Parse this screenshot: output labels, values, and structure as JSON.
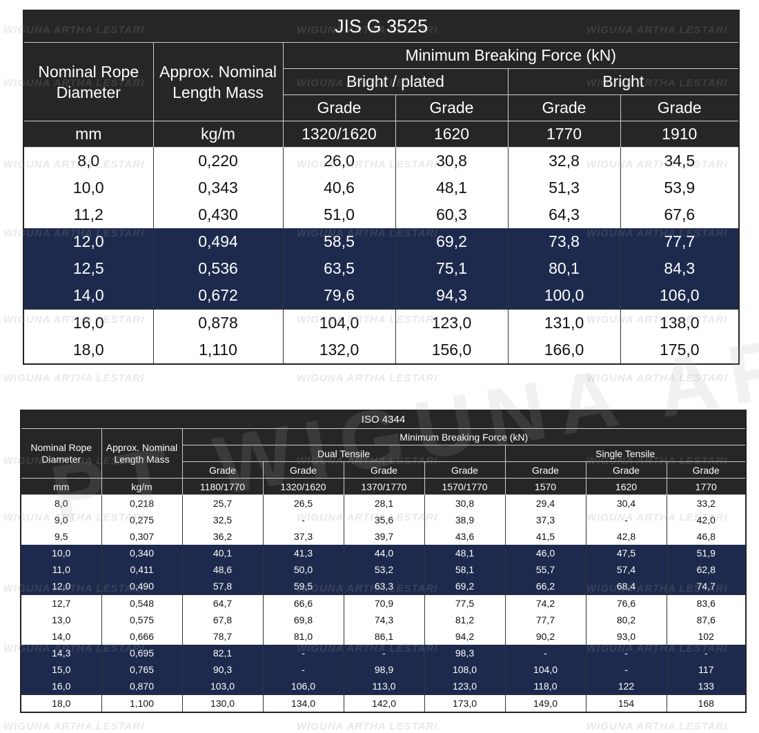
{
  "watermark": {
    "small": "WIGUNA ARTHA LESTARI",
    "big": "PT WIGUNA ARTHA LESTARI"
  },
  "jis": {
    "title": "JIS G 3525",
    "col_diameter": "Nominal Rope Diameter",
    "col_mass": "Approx. Nominal Length Mass",
    "col_mbf": "Minimum Breaking Force (kN)",
    "group1": "Bright / plated",
    "group2": "Bright",
    "grade_label": "Grade",
    "unit_diameter": "mm",
    "unit_mass": "kg/m",
    "grades": [
      "1320/1620",
      "1620",
      "1770",
      "1910"
    ],
    "rows": [
      [
        "8,0",
        "0,220",
        "26,0",
        "30,8",
        "32,8",
        "34,5"
      ],
      [
        "10,0",
        "0,343",
        "40,6",
        "48,1",
        "51,3",
        "53,9"
      ],
      [
        "11,2",
        "0,430",
        "51,0",
        "60,3",
        "64,3",
        "67,6"
      ],
      [
        "12,0",
        "0,494",
        "58,5",
        "69,2",
        "73,8",
        "77,7"
      ],
      [
        "12,5",
        "0,536",
        "63,5",
        "75,1",
        "80,1",
        "84,3"
      ],
      [
        "14,0",
        "0,672",
        "79,6",
        "94,3",
        "100,0",
        "106,0"
      ],
      [
        "16,0",
        "0,878",
        "104,0",
        "123,0",
        "131,0",
        "138,0"
      ],
      [
        "18,0",
        "1,110",
        "132,0",
        "156,0",
        "166,0",
        "175,0"
      ]
    ]
  },
  "iso": {
    "title": "ISO 4344",
    "col_diameter": "Nominal Rope Diameter",
    "col_mass": "Approx. Nominal Length Mass",
    "col_mbf": "Minimum Breaking Force (kN)",
    "group1": "Dual Tensile",
    "group2": "Single Tensile",
    "grade_label": "Grade",
    "unit_diameter": "mm",
    "unit_mass": "kg/m",
    "grades": [
      "1180/1770",
      "1320/1620",
      "1370/1770",
      "1570/1770",
      "1570",
      "1620",
      "1770"
    ],
    "rows": [
      [
        "8,0",
        "0,218",
        "25,7",
        "26,5",
        "28,1",
        "30,8",
        "29,4",
        "30,4",
        "33,2"
      ],
      [
        "9,0",
        "0,275",
        "32,5",
        "-",
        "35,6",
        "38,9",
        "37,3",
        "-",
        "42,0"
      ],
      [
        "9,5",
        "0,307",
        "36,2",
        "37,3",
        "39,7",
        "43,6",
        "41,5",
        "42,8",
        "46,8"
      ],
      [
        "10,0",
        "0,340",
        "40,1",
        "41,3",
        "44,0",
        "48,1",
        "46,0",
        "47,5",
        "51,9"
      ],
      [
        "11,0",
        "0,411",
        "48,6",
        "50,0",
        "53,2",
        "58,1",
        "55,7",
        "57,4",
        "62,8"
      ],
      [
        "12,0",
        "0,490",
        "57,8",
        "59,5",
        "63,3",
        "69,2",
        "66,2",
        "68,4",
        "74,7"
      ],
      [
        "12,7",
        "0,548",
        "64,7",
        "66,6",
        "70,9",
        "77,5",
        "74,2",
        "76,6",
        "83,6"
      ],
      [
        "13,0",
        "0,575",
        "67,8",
        "69,8",
        "74,3",
        "81,2",
        "77,7",
        "80,2",
        "87,6"
      ],
      [
        "14,0",
        "0,666",
        "78,7",
        "81,0",
        "86,1",
        "94,2",
        "90,2",
        "93,0",
        "102"
      ],
      [
        "14,3",
        "0,695",
        "82,1",
        "-",
        "-",
        "98,3",
        "-",
        "-",
        "-"
      ],
      [
        "15,0",
        "0,765",
        "90,3",
        "-",
        "98,9",
        "108,0",
        "104,0",
        "-",
        "117"
      ],
      [
        "16,0",
        "0,870",
        "103,0",
        "106,0",
        "113,0",
        "123,0",
        "118,0",
        "122",
        "133"
      ],
      [
        "18,0",
        "1,100",
        "130,0",
        "134,0",
        "142,0",
        "173,0",
        "149,0",
        "154",
        "168"
      ]
    ]
  }
}
